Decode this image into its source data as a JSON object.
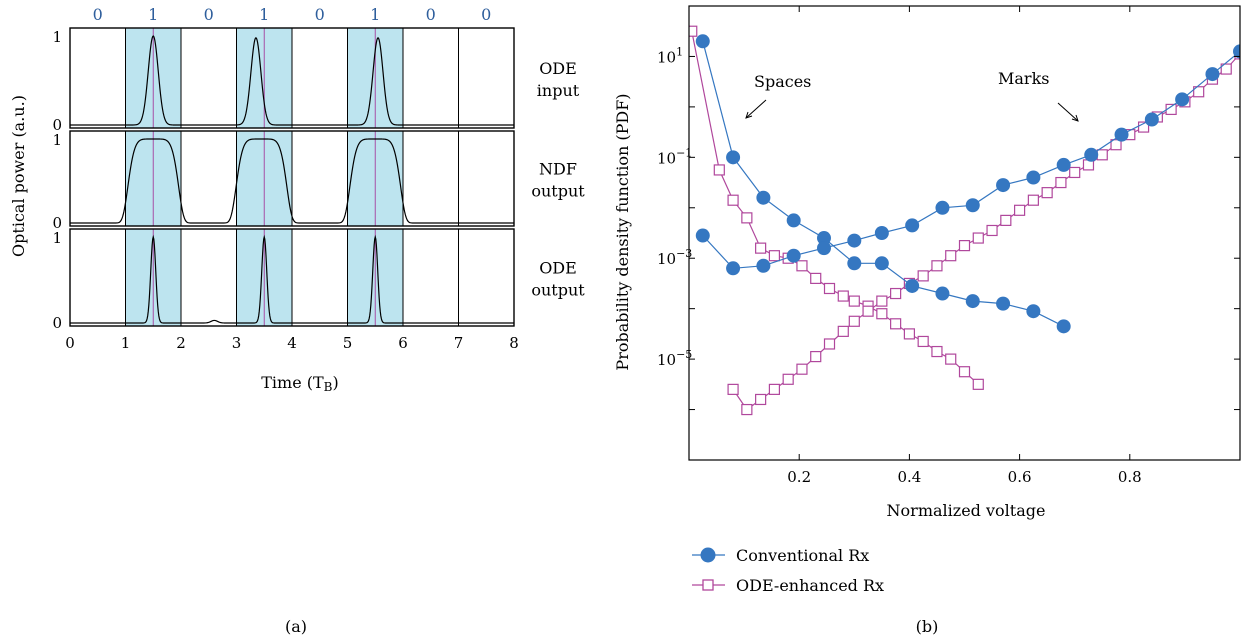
{
  "colors": {
    "highlight": "#bde4ef",
    "bit_label": "#2e5e9c",
    "center_line": "#a64ea6",
    "trace": "#000000",
    "conventional": "#3577c1",
    "ode_enhanced": "#b0479c"
  },
  "chart_data": [
    {
      "id": "a",
      "type": "line",
      "panel_label": "(a)",
      "xlabel": "Time (T",
      "xlabel_sub": "B",
      "xlabel_close": ")",
      "ylabel": "Optical power (a.u.)",
      "xlim": [
        0,
        8
      ],
      "ylim": [
        0,
        1
      ],
      "xticks": [
        "0",
        "1",
        "2",
        "3",
        "4",
        "5",
        "6",
        "7",
        "8"
      ],
      "bits": [
        "0",
        "1",
        "0",
        "1",
        "0",
        "1",
        "0",
        "0"
      ],
      "highlighted_slots": [
        [
          1,
          2
        ],
        [
          3,
          4
        ],
        [
          5,
          6
        ]
      ],
      "slot_boundaries": [
        1,
        2,
        3,
        4,
        5,
        6,
        7
      ],
      "center_lines": [
        1.5,
        3.5,
        5.5
      ],
      "subplots": [
        {
          "label_lines": [
            "ODE",
            "input"
          ],
          "yticks": [
            "0",
            "1"
          ],
          "pulses": [
            {
              "center": 1.5,
              "sigma": 0.09,
              "amp": 1.0
            },
            {
              "center": 3.35,
              "sigma": 0.09,
              "amp": 0.98
            },
            {
              "center": 5.55,
              "sigma": 0.09,
              "amp": 0.98
            }
          ]
        },
        {
          "label_lines": [
            "NDF",
            "output"
          ],
          "yticks": [
            "0",
            "1"
          ],
          "pulses": [
            {
              "center": 1.5,
              "sigma": 0.42,
              "amp": 1.0,
              "order": 3
            },
            {
              "center": 3.45,
              "sigma": 0.42,
              "amp": 1.0,
              "order": 3
            },
            {
              "center": 5.5,
              "sigma": 0.42,
              "amp": 1.0,
              "order": 3
            }
          ]
        },
        {
          "label_lines": [
            "ODE",
            "output"
          ],
          "yticks": [
            "0",
            "1"
          ],
          "pulses": [
            {
              "center": 1.5,
              "sigma": 0.045,
              "amp": 1.0
            },
            {
              "center": 2.6,
              "sigma": 0.06,
              "amp": 0.03
            },
            {
              "center": 3.5,
              "sigma": 0.045,
              "amp": 1.0
            },
            {
              "center": 5.5,
              "sigma": 0.045,
              "amp": 1.0
            }
          ]
        }
      ]
    },
    {
      "id": "b",
      "type": "line",
      "panel_label": "(b)",
      "xlabel": "Normalized voltage",
      "ylabel": "Probability density function (PDF)",
      "yscale": "log",
      "xlim": [
        0,
        1
      ],
      "ylim_log10": [
        -7,
        2
      ],
      "xticks": [
        0.2,
        0.4,
        0.6,
        0.8
      ],
      "xtick_labels": [
        "0.2",
        "0.4",
        "0.6",
        "0.8"
      ],
      "ytick_exponents": [
        1,
        -1,
        -3,
        -5
      ],
      "ytick_base": "10",
      "ytick_labels": [
        "1",
        "−1",
        "−3",
        "−5"
      ],
      "annotations": [
        {
          "text": "Spaces"
        },
        {
          "text": "Marks"
        }
      ],
      "series": [
        {
          "name": "Conventional Rx",
          "marker": "circle",
          "spaces": {
            "x": [
              0.025,
              0.08,
              0.135,
              0.19,
              0.245,
              0.3,
              0.35,
              0.405,
              0.46,
              0.515,
              0.57,
              0.625,
              0.68
            ],
            "log10_y": [
              1.3,
              -1.0,
              -1.8,
              -2.25,
              -2.6,
              -3.1,
              -3.1,
              -3.55,
              -3.7,
              -3.85,
              -3.9,
              -4.05,
              -4.35
            ]
          },
          "marks": {
            "x": [
              0.025,
              0.08,
              0.135,
              0.19,
              0.245,
              0.3,
              0.35,
              0.405,
              0.46,
              0.515,
              0.57,
              0.625,
              0.68,
              0.73,
              0.785,
              0.84,
              0.895,
              0.95,
              1.0
            ],
            "log10_y": [
              -2.55,
              -3.2,
              -3.15,
              -2.95,
              -2.8,
              -2.65,
              -2.5,
              -2.35,
              -2.0,
              -1.95,
              -1.55,
              -1.4,
              -1.15,
              -0.95,
              -0.55,
              -0.25,
              0.15,
              0.65,
              1.1
            ]
          }
        },
        {
          "name": "ODE-enhanced Rx",
          "marker": "square",
          "spaces": {
            "x": [
              0.005,
              0.055,
              0.08,
              0.105,
              0.13,
              0.155,
              0.18,
              0.205,
              0.23,
              0.255,
              0.28,
              0.3,
              0.325,
              0.35,
              0.375,
              0.4,
              0.425,
              0.45,
              0.475,
              0.5,
              0.525
            ],
            "log10_y": [
              1.5,
              -1.25,
              -1.85,
              -2.2,
              -2.8,
              -2.95,
              -3.0,
              -3.15,
              -3.4,
              -3.6,
              -3.75,
              -3.85,
              -3.95,
              -4.1,
              -4.3,
              -4.5,
              -4.65,
              -4.85,
              -5.0,
              -5.25,
              -5.5
            ]
          },
          "marks": {
            "x": [
              0.08,
              0.105,
              0.13,
              0.155,
              0.18,
              0.205,
              0.23,
              0.255,
              0.28,
              0.3,
              0.325,
              0.35,
              0.375,
              0.4,
              0.425,
              0.45,
              0.475,
              0.5,
              0.525,
              0.55,
              0.575,
              0.6,
              0.625,
              0.65,
              0.675,
              0.7,
              0.725,
              0.75,
              0.775,
              0.8,
              0.825,
              0.85,
              0.875,
              0.9,
              0.925,
              0.95,
              0.975,
              1.0
            ],
            "log10_y": [
              -5.6,
              -6.0,
              -5.8,
              -5.6,
              -5.4,
              -5.2,
              -4.95,
              -4.7,
              -4.45,
              -4.25,
              -4.05,
              -3.85,
              -3.7,
              -3.5,
              -3.35,
              -3.15,
              -2.95,
              -2.75,
              -2.6,
              -2.45,
              -2.25,
              -2.05,
              -1.85,
              -1.7,
              -1.5,
              -1.3,
              -1.15,
              -0.95,
              -0.75,
              -0.55,
              -0.4,
              -0.2,
              -0.05,
              0.1,
              0.3,
              0.55,
              0.75,
              1.05
            ]
          }
        }
      ]
    }
  ]
}
